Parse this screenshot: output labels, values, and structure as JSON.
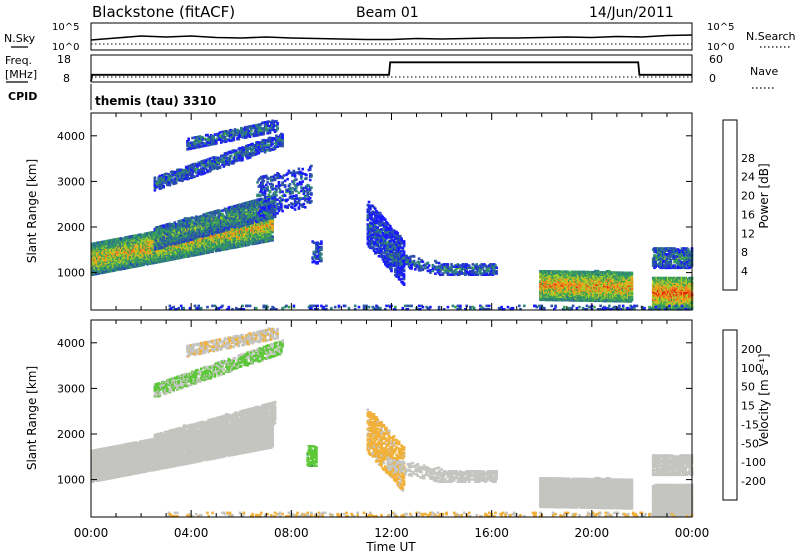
{
  "header": {
    "station": "Blackstone (fitACF)",
    "beam": "Beam 01",
    "date": "14/Jun/2011"
  },
  "noise_panel": {
    "left_label": "N.Sky",
    "left_ticks": [
      "10^5",
      "10^0"
    ],
    "right_label": "N.Search",
    "right_ticks": [
      "10^5",
      "10^0"
    ]
  },
  "freq_panel": {
    "left_label_1": "Freq.",
    "left_label_2": "[MHz]",
    "left_ticks": [
      "18",
      "8"
    ],
    "right_label": "Nave",
    "right_ticks": [
      "60",
      "0"
    ]
  },
  "cpid_panel": {
    "label": "CPID",
    "value": "themis (tau) 3310"
  },
  "colors": {
    "power_scale": [
      "#1a1aff",
      "#2a4cae",
      "#2e7f7f",
      "#3aa354",
      "#a6cd2a",
      "#f2a51a",
      "#f07020",
      "#e02810",
      "#ff0000"
    ],
    "velocity_scale": [
      "#1818c8",
      "#2a55a8",
      "#2e7a7a",
      "#5cc838",
      "#c4c4c0",
      "#f0b03a",
      "#f08828",
      "#f05018",
      "#ff0000"
    ],
    "ground_scatter": "#c4c4c0"
  },
  "chart_data": [
    {
      "type": "line",
      "panel": "noise",
      "x_unit": "hour UT",
      "x": [
        0,
        1,
        2,
        3,
        4,
        5,
        6,
        7,
        8,
        9,
        10,
        11,
        12,
        13,
        14,
        15,
        16,
        17,
        18,
        19,
        20,
        21,
        22,
        23,
        24
      ],
      "series": [
        {
          "name": "N.Sky",
          "values": [
            1.8,
            2.2,
            2.6,
            2.4,
            2.6,
            2.3,
            2.2,
            2.4,
            2.2,
            2.1,
            2.0,
            1.9,
            1.9,
            2.1,
            2.0,
            2.1,
            2.2,
            2.2,
            2.3,
            2.4,
            2.3,
            2.5,
            2.4,
            2.7,
            2.8
          ]
        },
        {
          "name": "N.Search",
          "values": [
            1.0,
            1.0,
            1.0,
            1.0,
            1.0,
            1.0,
            1.0,
            1.0,
            1.0,
            1.0,
            1.0,
            1.0,
            1.0,
            1.0,
            1.0,
            1.0,
            1.0,
            1.0,
            1.0,
            1.0,
            1.0,
            1.0,
            1.0,
            1.0,
            1.0
          ]
        }
      ],
      "ylim": [
        0,
        5
      ],
      "yscale": "log10"
    },
    {
      "type": "line",
      "panel": "frequency",
      "x_unit": "hour UT",
      "series": [
        {
          "name": "Freq.",
          "x": [
            0,
            0.05,
            11.9,
            11.95,
            21.85,
            21.9,
            24
          ],
          "values": [
            8,
            10.5,
            10.5,
            15.5,
            15.5,
            10.5,
            10.5
          ]
        },
        {
          "name": "Nave",
          "x": [
            0,
            24
          ],
          "values": [
            8,
            8
          ]
        }
      ],
      "ylim": [
        8,
        18
      ]
    },
    {
      "type": "heatmap",
      "panel": "power",
      "xlabel": "",
      "ylabel": "Slant Range [km]",
      "xlim": [
        0,
        24
      ],
      "ylim": [
        180,
        4500
      ],
      "yticks": [
        1000,
        2000,
        3000,
        4000
      ],
      "colorbar": {
        "label": "Power [dB]",
        "ticks": [
          4,
          8,
          12,
          16,
          20,
          24,
          28
        ],
        "range": [
          0,
          32
        ]
      },
      "regions": [
        {
          "t0": 0.0,
          "t1": 7.2,
          "r0": 950,
          "r1": 1650,
          "slope": 105,
          "value": 14,
          "density": 0.85
        },
        {
          "t0": 2.5,
          "t1": 7.3,
          "r0": 1500,
          "r1": 2000,
          "slope": 150,
          "value": 9,
          "density": 0.6
        },
        {
          "t0": 2.5,
          "t1": 7.6,
          "r0": 2800,
          "r1": 3100,
          "slope": 190,
          "value": 6,
          "density": 0.45
        },
        {
          "t0": 3.8,
          "t1": 7.4,
          "r0": 3700,
          "r1": 3950,
          "slope": 110,
          "value": 6,
          "density": 0.45
        },
        {
          "t0": 6.6,
          "t1": 8.8,
          "r0": 2200,
          "r1": 3100,
          "slope": 120,
          "value": 5,
          "density": 0.2
        },
        {
          "t0": 8.8,
          "t1": 9.2,
          "r0": 1200,
          "r1": 1700,
          "slope": 0,
          "value": 4,
          "density": 0.35
        },
        {
          "t0": 11.0,
          "t1": 12.5,
          "r0": 1600,
          "r1": 2600,
          "slope": -600,
          "value": 4,
          "density": 0.4
        },
        {
          "t0": 11.8,
          "t1": 14.0,
          "r0": 1200,
          "r1": 1500,
          "slope": -120,
          "value": 5,
          "density": 0.25
        },
        {
          "t0": 14.0,
          "t1": 16.2,
          "r0": 950,
          "r1": 1200,
          "slope": 0,
          "value": 6,
          "density": 0.45
        },
        {
          "t0": 17.9,
          "t1": 21.6,
          "r0": 400,
          "r1": 1050,
          "slope": -10,
          "value": 16,
          "density": 0.85
        },
        {
          "t0": 22.4,
          "t1": 24.0,
          "r0": 200,
          "r1": 900,
          "slope": 0,
          "value": 18,
          "density": 0.85
        },
        {
          "t0": 22.4,
          "t1": 24.0,
          "r0": 1100,
          "r1": 1550,
          "slope": 0,
          "value": 7,
          "density": 0.55
        },
        {
          "t0": 3.0,
          "t1": 24.0,
          "r0": 190,
          "r1": 280,
          "slope": 0,
          "value": 6,
          "density": 0.15
        }
      ]
    },
    {
      "type": "heatmap",
      "panel": "velocity",
      "xlabel": "Time UT",
      "ylabel": "Slant Range [km]",
      "xlim": [
        0,
        24
      ],
      "ylim": [
        180,
        4500
      ],
      "xticks": [
        "00:00",
        "04:00",
        "08:00",
        "12:00",
        "16:00",
        "20:00",
        "00:00"
      ],
      "yticks": [
        1000,
        2000,
        3000,
        4000
      ],
      "colorbar": {
        "label": "Velocity [m s⁻¹]",
        "ticks": [
          200,
          100,
          50,
          15,
          -15,
          -50,
          -100,
          -200
        ],
        "range": [
          -250,
          250
        ]
      },
      "regions": [
        {
          "t0": 0.0,
          "t1": 7.2,
          "r0": 950,
          "r1": 1650,
          "slope": 105,
          "value": 0,
          "density": 0.85
        },
        {
          "t0": 2.5,
          "t1": 7.3,
          "r0": 1500,
          "r1": 2000,
          "slope": 150,
          "value": 0,
          "density": 0.6
        },
        {
          "t0": 2.5,
          "t1": 7.6,
          "r0": 2800,
          "r1": 3100,
          "slope": 190,
          "value": -30,
          "density": 0.45
        },
        {
          "t0": 3.8,
          "t1": 7.4,
          "r0": 3700,
          "r1": 3950,
          "slope": 110,
          "value": 20,
          "density": 0.45
        },
        {
          "t0": 8.6,
          "t1": 9.0,
          "r0": 1300,
          "r1": 1750,
          "slope": 0,
          "value": -70,
          "density": 0.4
        },
        {
          "t0": 11.0,
          "t1": 12.5,
          "r0": 1600,
          "r1": 2600,
          "slope": -600,
          "value": 40,
          "density": 0.4
        },
        {
          "t0": 11.8,
          "t1": 14.0,
          "r0": 1200,
          "r1": 1500,
          "slope": -120,
          "value": 0,
          "density": 0.25
        },
        {
          "t0": 14.0,
          "t1": 16.2,
          "r0": 950,
          "r1": 1200,
          "slope": 0,
          "value": 0,
          "density": 0.45
        },
        {
          "t0": 17.9,
          "t1": 21.6,
          "r0": 400,
          "r1": 1050,
          "slope": -10,
          "value": 0,
          "density": 0.85
        },
        {
          "t0": 22.4,
          "t1": 24.0,
          "r0": 200,
          "r1": 900,
          "slope": 0,
          "value": 0,
          "density": 0.85
        },
        {
          "t0": 22.4,
          "t1": 24.0,
          "r0": 1100,
          "r1": 1550,
          "slope": 0,
          "value": 0,
          "density": 0.55
        },
        {
          "t0": 3.0,
          "t1": 24.0,
          "r0": 190,
          "r1": 280,
          "slope": 0,
          "value": 30,
          "density": 0.15
        }
      ]
    }
  ]
}
